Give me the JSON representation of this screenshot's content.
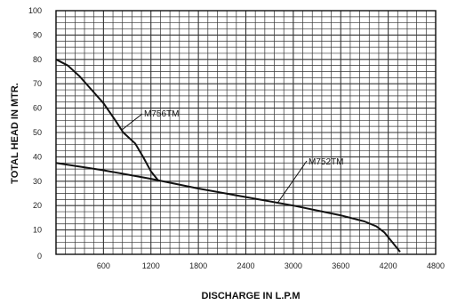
{
  "chart_data": {
    "type": "line",
    "xlabel": "DISCHARGE IN L.P.M",
    "ylabel": "TOTAL HEAD IN MTR.",
    "xlim": [
      0,
      4800
    ],
    "ylim": [
      0,
      100
    ],
    "x_ticks": [
      "600",
      "1200",
      "1800",
      "2400",
      "3000",
      "3600",
      "4200",
      "4800"
    ],
    "y_ticks": [
      "0",
      "10",
      "20",
      "30",
      "40",
      "50",
      "60",
      "70",
      "80",
      "90",
      "100"
    ],
    "grid": true,
    "series": [
      {
        "name": "M756TM",
        "x": [
          0,
          150,
          300,
          450,
          600,
          750,
          850,
          1000,
          1100,
          1200,
          1300
        ],
        "y": [
          80,
          77.5,
          73,
          67.5,
          62,
          55,
          50,
          45.5,
          40,
          34,
          30
        ]
      },
      {
        "name": "M752TM",
        "x": [
          0,
          600,
          1200,
          1800,
          2400,
          3000,
          3600,
          3900,
          4050,
          4150,
          4250,
          4350
        ],
        "y": [
          37.5,
          34.5,
          31,
          27,
          23.5,
          20,
          16,
          13.5,
          11.5,
          9,
          5,
          1
        ]
      }
    ]
  }
}
